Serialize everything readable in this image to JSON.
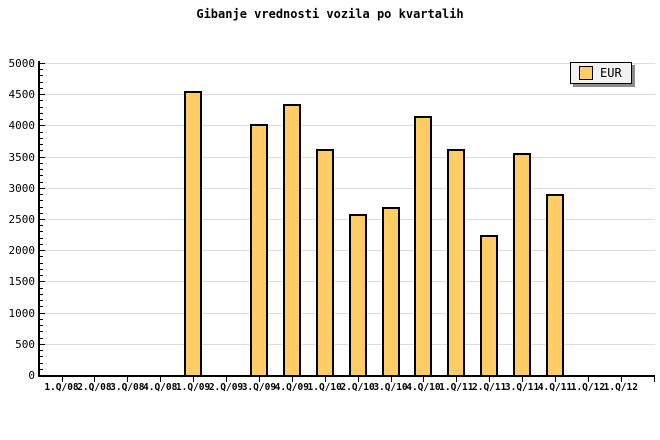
{
  "chart_data": {
    "type": "bar",
    "title": "Gibanje vrednosti vozila po kvartalih",
    "categories": [
      "1.Q/08",
      "2.Q/08",
      "3.Q/08",
      "4.Q/08",
      "1.Q/09",
      "2.Q/09",
      "3.Q/09",
      "4.Q/09",
      "1.Q/10",
      "2.Q/10",
      "3.Q/10",
      "4.Q/10",
      "1.Q/11",
      "2.Q/11",
      "3.Q/11",
      "4.Q/11",
      "1.Q/12",
      "1.Q/12"
    ],
    "series": [
      {
        "name": "EUR",
        "values": [
          null,
          null,
          null,
          null,
          4550,
          null,
          4025,
          4350,
          3625,
          2575,
          2700,
          4150,
          3625,
          2250,
          3550,
          2900,
          null,
          null
        ]
      }
    ],
    "ylim": [
      0,
      5000
    ],
    "ytick_step": 500,
    "yminor_step": 100,
    "grid": "horizontal",
    "legend_position": "top-right",
    "colors": {
      "bar_fill": "#FFCC66",
      "bar_border": "#000000",
      "grid": "#DCDCDC",
      "axis": "#000000",
      "background": "#FFFFFF",
      "legend_bg": "#F2F2F2",
      "legend_shadow": "#8C8C8C",
      "text": "#000000"
    }
  }
}
